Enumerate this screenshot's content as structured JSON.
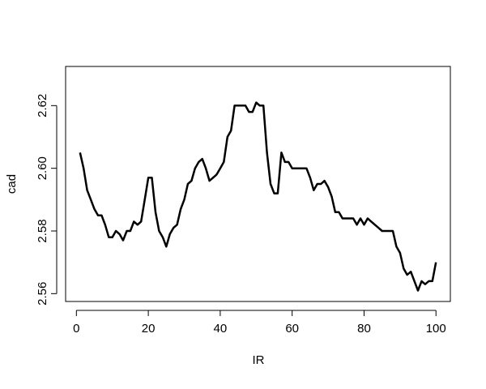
{
  "chart_data": {
    "type": "line",
    "title": "",
    "xlabel": "IR",
    "ylabel": "cad",
    "xlim": [
      -3,
      104
    ],
    "ylim": [
      2.5575,
      2.6325
    ],
    "x_ticks": [
      0,
      20,
      40,
      60,
      80,
      100
    ],
    "y_ticks": [
      2.56,
      2.58,
      2.6,
      2.62
    ],
    "x_tick_labels": [
      "0",
      "20",
      "40",
      "60",
      "80",
      "100"
    ],
    "y_tick_labels": [
      "2.56",
      "2.58",
      "2.60",
      "2.62"
    ],
    "grid": false,
    "legend": "none",
    "line_color": "#000000",
    "series": [
      {
        "x": [
          1,
          2,
          3,
          4,
          5,
          6,
          7,
          8,
          9,
          10,
          11,
          12,
          13,
          14,
          15,
          16,
          17,
          18,
          19,
          20,
          21,
          22,
          23,
          24,
          25,
          26,
          27,
          28,
          29,
          30,
          31,
          32,
          33,
          34,
          35,
          36,
          37,
          38,
          39,
          40,
          41,
          42,
          43,
          44,
          45,
          46,
          47,
          48,
          49,
          50,
          51,
          52,
          53,
          54,
          55,
          56,
          57,
          58,
          59,
          60,
          61,
          62,
          63,
          64,
          65,
          66,
          67,
          68,
          69,
          70,
          71,
          72,
          73,
          74,
          75,
          76,
          77,
          78,
          79,
          80,
          81,
          82,
          83,
          84,
          85,
          86,
          87,
          88,
          89,
          90,
          91,
          92,
          93,
          94,
          95,
          96,
          97,
          98,
          99,
          100
        ],
        "y": [
          2.605,
          2.6,
          2.593,
          2.59,
          2.587,
          2.585,
          2.585,
          2.582,
          2.578,
          2.578,
          2.58,
          2.579,
          2.577,
          2.58,
          2.58,
          2.583,
          2.582,
          2.583,
          2.59,
          2.597,
          2.597,
          2.586,
          2.58,
          2.578,
          2.575,
          2.579,
          2.581,
          2.582,
          2.587,
          2.59,
          2.595,
          2.596,
          2.6,
          2.602,
          2.603,
          2.6,
          2.596,
          2.597,
          2.598,
          2.6,
          2.602,
          2.61,
          2.612,
          2.62,
          2.62,
          2.62,
          2.62,
          2.618,
          2.618,
          2.621,
          2.62,
          2.62,
          2.605,
          2.595,
          2.592,
          2.592,
          2.605,
          2.602,
          2.602,
          2.6,
          2.6,
          2.6,
          2.6,
          2.6,
          2.597,
          2.593,
          2.595,
          2.595,
          2.596,
          2.594,
          2.591,
          2.586,
          2.586,
          2.584,
          2.584,
          2.584,
          2.584,
          2.582,
          2.584,
          2.582,
          2.584,
          2.583,
          2.582,
          2.581,
          2.58,
          2.58,
          2.58,
          2.58,
          2.575,
          2.573,
          2.568,
          2.566,
          2.567,
          2.564,
          2.561,
          2.564,
          2.563,
          2.564,
          2.564,
          2.57
        ]
      }
    ]
  }
}
